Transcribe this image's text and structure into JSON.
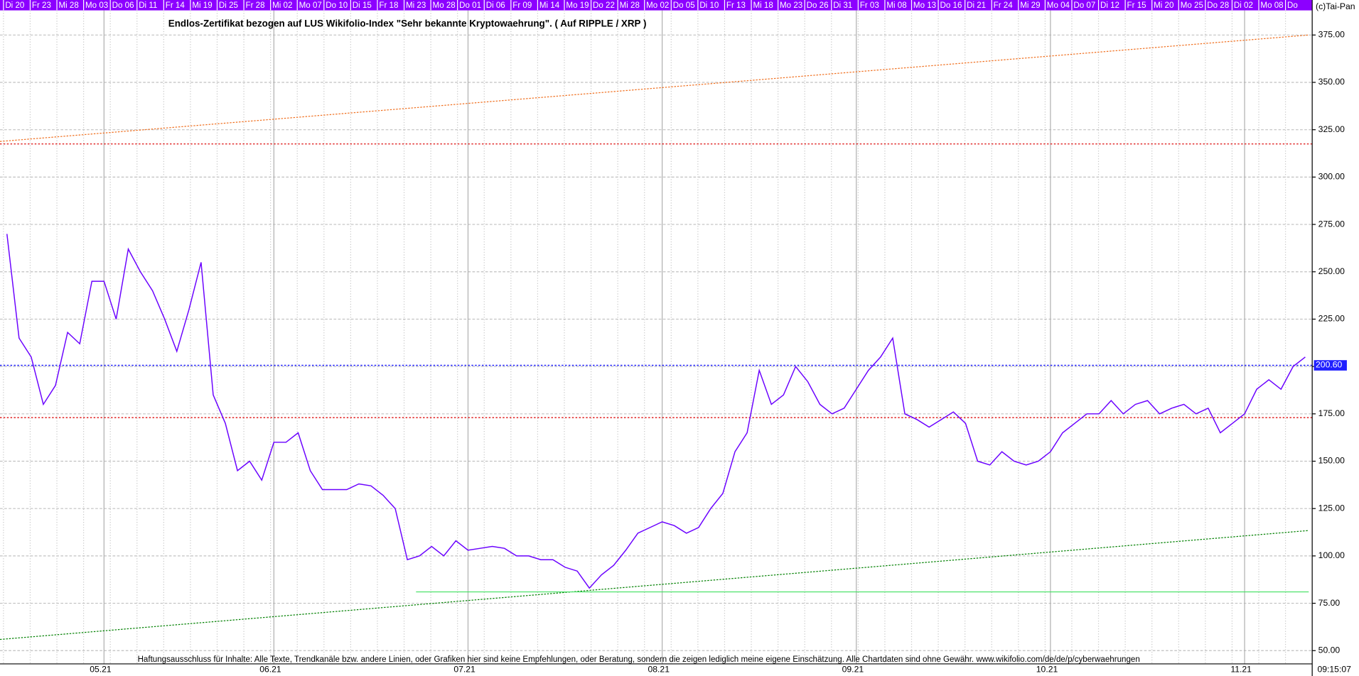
{
  "chart_data": {
    "type": "line",
    "title": "Endlos-Zertifikat bezogen auf LUS Wikifolio-Index \"Sehr bekannte Kryptowaehrung\". ( Auf RIPPLE / XRP )",
    "copyright": "(c)Tai-Pan",
    "timestamp": "09:15:07",
    "disclaimer": "Haftungsausschluss für Inhalte: Alle Texte, Trendkanäle bzw. andere Linien, oder Grafiken hier sind keine Empfehlungen, oder Beratung, sondern die zeigen lediglich meine eigene Einschätzung. Alle Chartdaten sind ohne Gewähr.  www.wikifolio.com/de/de/p/cyberwaehrungen",
    "top_dates": [
      "Di 20",
      "Fr 23",
      "Mi 28",
      "Mo 03",
      "Do 06",
      "Di 11",
      "Fr 14",
      "Mi 19",
      "Di 25",
      "Fr 28",
      "Mi 02",
      "Mo 07",
      "Do 10",
      "Di 15",
      "Fr 18",
      "Mi 23",
      "Mo 28",
      "Do 01",
      "Di 06",
      "Fr 09",
      "Mi 14",
      "Mo 19",
      "Do 22",
      "Mi 28",
      "Mo 02",
      "Do 05",
      "Di 10",
      "Fr 13",
      "Mi 18",
      "Mo 23",
      "Do 26",
      "Di 31",
      "Fr 03",
      "Mi 08",
      "Mo 13",
      "Do 16",
      "Di 21",
      "Fr 24",
      "Mi 29",
      "Mo 04",
      "Do 07",
      "Di 12",
      "Fr 15",
      "Mi 20",
      "Mo 25",
      "Do 28",
      "Di 02",
      "Mo 08",
      "Do"
    ],
    "categories": [
      null,
      null,
      null,
      null,
      null,
      null,
      null,
      null,
      "05.21",
      null,
      null,
      null,
      null,
      null,
      null,
      null,
      null,
      null,
      null,
      null,
      null,
      null,
      "06.21",
      null,
      null,
      null,
      null,
      null,
      null,
      null,
      null,
      null,
      null,
      null,
      null,
      null,
      null,
      null,
      "07.21",
      null,
      null,
      null,
      null,
      null,
      null,
      null,
      null,
      null,
      null,
      null,
      null,
      null,
      null,
      null,
      "08.21",
      null,
      null,
      null,
      null,
      null,
      null,
      null,
      null,
      null,
      null,
      null,
      null,
      null,
      null,
      null,
      "09.21",
      null,
      null,
      null,
      null,
      null,
      null,
      null,
      null,
      null,
      null,
      null,
      null,
      null,
      null,
      null,
      "10.21",
      null,
      null,
      null,
      null,
      null,
      null,
      null,
      null,
      null,
      null,
      null,
      null,
      null,
      null,
      null,
      "11.21",
      null,
      null,
      null,
      null,
      null
    ],
    "series": [
      {
        "color": "#6a00ff",
        "values": [
          270,
          215,
          205,
          180,
          190,
          218,
          212,
          245,
          245,
          225,
          262,
          250,
          240,
          225,
          208,
          230,
          255,
          185,
          170,
          145,
          150,
          140,
          160,
          160,
          165,
          145,
          135,
          135,
          135,
          138,
          137,
          132,
          125,
          98,
          100,
          105,
          100,
          108,
          103,
          104,
          105,
          104,
          100,
          100,
          98,
          98,
          94,
          92,
          83,
          90,
          95,
          103,
          112,
          115,
          118,
          116,
          112,
          115,
          125,
          133,
          155,
          165,
          198,
          180,
          185,
          200,
          192,
          180,
          175,
          178,
          188,
          198,
          205,
          215,
          175,
          172,
          168,
          172,
          176,
          170,
          150,
          148,
          155,
          150,
          148,
          150,
          155,
          165,
          170,
          175,
          175,
          182,
          175,
          180,
          182,
          175,
          178,
          180,
          175,
          178,
          165,
          170,
          175,
          188,
          193,
          188,
          200,
          205
        ]
      }
    ],
    "levels": [
      {
        "value": 317.5,
        "color": "#e02020"
      },
      {
        "value": 200.6,
        "label": "200.60",
        "color": "#2020ff"
      },
      {
        "value": 173,
        "color": "#e02020"
      }
    ],
    "support": {
      "value": 81,
      "color": "#40e060"
    },
    "trendlines": [
      {
        "start": 318.8,
        "end": 375,
        "color": "#f07020"
      },
      {
        "start": 55.9,
        "end": 113.4,
        "color": "#008000"
      }
    ],
    "ylim": [
      43,
      388
    ],
    "yticks": [
      {
        "value": 50,
        "label": "50.00"
      },
      {
        "value": 75,
        "label": "75.00"
      },
      {
        "value": 100,
        "label": "100.00"
      },
      {
        "value": 125,
        "label": "125.00"
      },
      {
        "value": 150,
        "label": "150.00"
      },
      {
        "value": 175,
        "label": "175.00"
      },
      {
        "value": 200,
        "label": "200.00"
      },
      {
        "value": 225,
        "label": "225.00"
      },
      {
        "value": 250,
        "label": "250.00"
      },
      {
        "value": 275,
        "label": "275.00"
      },
      {
        "value": 300,
        "label": "300.00"
      },
      {
        "value": 325,
        "label": "325.00"
      },
      {
        "value": 350,
        "label": "350.00"
      },
      {
        "value": 375,
        "label": "375.00"
      }
    ],
    "grid": true
  }
}
